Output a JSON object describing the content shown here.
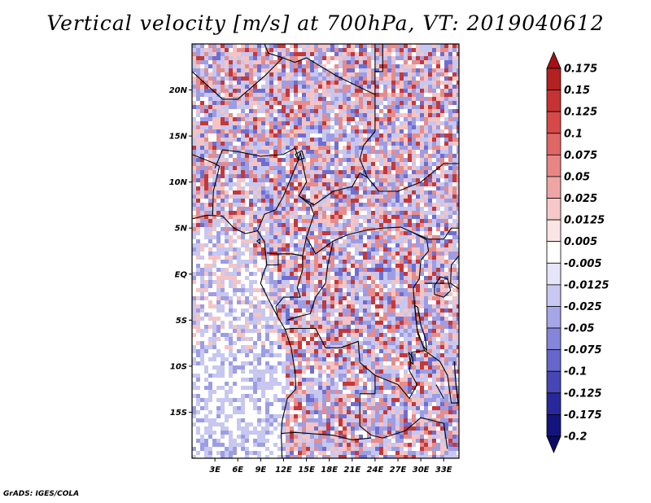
{
  "title": "Vertical velocity [m/s] at 700hPa, VT: 2019040612",
  "credit": "GrADS: IGES/COLA",
  "lat_labels": [
    "20N",
    "15N",
    "10N",
    "5N",
    "EQ",
    "5S",
    "10S",
    "15S"
  ],
  "lat_values": [
    20,
    15,
    10,
    5,
    0,
    -5,
    -10,
    -15
  ],
  "lon_labels": [
    "3E",
    "6E",
    "9E",
    "12E",
    "15E",
    "18E",
    "21E",
    "24E",
    "27E",
    "30E",
    "33E"
  ],
  "lon_values": [
    3,
    6,
    9,
    12,
    15,
    18,
    21,
    24,
    27,
    30,
    33
  ],
  "map_extent": {
    "lon": [
      0,
      35
    ],
    "lat": [
      -20,
      25
    ]
  },
  "colorbar": {
    "labels": [
      "0.175",
      "0.15",
      "0.125",
      "0.1",
      "0.075",
      "0.05",
      "0.025",
      "0.0125",
      "0.005",
      "-0.005",
      "-0.0125",
      "-0.025",
      "-0.05",
      "-0.075",
      "-0.1",
      "-0.125",
      "-0.175",
      "-0.2"
    ],
    "colors": [
      "#a50f15",
      "#b52020",
      "#c83232",
      "#d74848",
      "#e06666",
      "#e88585",
      "#f0a5a5",
      "#f7c8c8",
      "#fbe4e4",
      "#ffffff",
      "#e6e6fb",
      "#c8c8f2",
      "#a5a5e8",
      "#8585dc",
      "#6666cc",
      "#4646b4",
      "#28289c",
      "#14147d",
      "#0a0a64"
    ]
  },
  "field_colors": {
    "weak_down": "#c7c7f0",
    "moderate_down": "#9d9de3",
    "strong_down": "#6e6ed0",
    "weak_up": "#f4c4c4",
    "moderate_up": "#e68c8c",
    "strong_up": "#c43838",
    "neutral": "#ffffff",
    "border": "#000000"
  }
}
